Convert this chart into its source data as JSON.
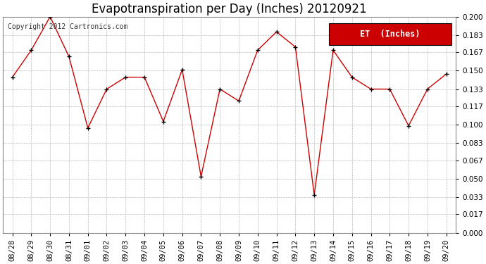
{
  "title": "Evapotranspiration per Day (Inches) 20120921",
  "copyright": "Copyright 2012 Cartronics.com",
  "legend_label": "ET  (Inches)",
  "x_labels": [
    "08/28",
    "08/29",
    "08/30",
    "08/31",
    "09/01",
    "09/02",
    "09/03",
    "09/04",
    "09/05",
    "09/06",
    "09/07",
    "09/08",
    "09/09",
    "09/10",
    "09/11",
    "09/12",
    "09/13",
    "09/14",
    "09/15",
    "09/16",
    "09/17",
    "09/18",
    "09/19",
    "09/20"
  ],
  "y_values": [
    0.144,
    0.169,
    0.2,
    0.163,
    0.097,
    0.133,
    0.144,
    0.144,
    0.103,
    0.151,
    0.052,
    0.133,
    0.122,
    0.169,
    0.186,
    0.172,
    0.035,
    0.169,
    0.144,
    0.133,
    0.133,
    0.099,
    0.133,
    0.147
  ],
  "y_ticks": [
    0.0,
    0.017,
    0.033,
    0.05,
    0.067,
    0.083,
    0.1,
    0.117,
    0.133,
    0.15,
    0.167,
    0.183,
    0.2
  ],
  "ylim": [
    0.0,
    0.2
  ],
  "line_color": "#cc0000",
  "marker_color": "#000000",
  "bg_color": "#ffffff",
  "grid_color": "#bbbbbb",
  "title_fontsize": 12,
  "copyright_fontsize": 7,
  "legend_bg": "#cc0000",
  "legend_text_color": "#ffffff",
  "legend_fontsize": 8.5,
  "tick_fontsize": 7.5
}
